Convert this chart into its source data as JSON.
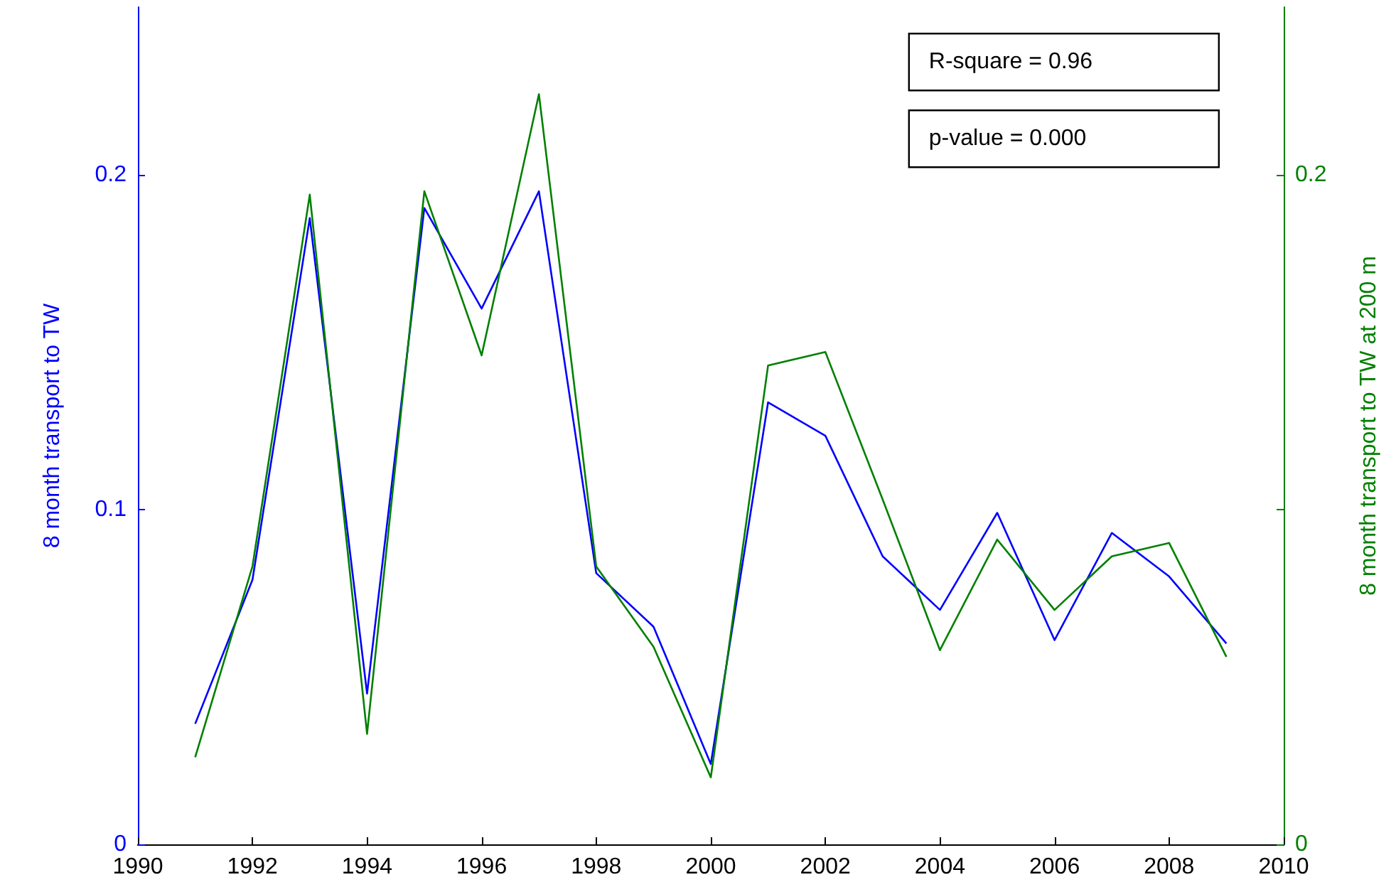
{
  "chart_data": {
    "type": "line",
    "ylabel": "8 month transport to TW",
    "y2label": "8 month transport to TW at 200 m",
    "x": [
      1991,
      1992,
      1993,
      1994,
      1995,
      1996,
      1997,
      1998,
      1999,
      2000,
      2001,
      2002,
      2003,
      2004,
      2005,
      2006,
      2007,
      2008,
      2009
    ],
    "series": [
      {
        "color": "#0000ff",
        "values": [
          0.036,
          0.079,
          0.187,
          0.045,
          0.19,
          0.16,
          0.195,
          0.081,
          0.065,
          0.024,
          0.132,
          0.122,
          0.086,
          0.07,
          0.099,
          0.061,
          0.093,
          0.08,
          0.06
        ]
      },
      {
        "color": "#008000",
        "axis": "y2",
        "values": [
          0.026,
          0.083,
          0.194,
          0.033,
          0.195,
          0.146,
          0.224,
          0.083,
          0.059,
          0.02,
          0.143,
          0.147,
          0.103,
          0.058,
          0.091,
          0.07,
          0.086,
          0.09,
          0.056
        ]
      }
    ],
    "xlim": [
      1990,
      2010
    ],
    "xticks": [
      1990,
      1992,
      1994,
      1996,
      1998,
      2000,
      2002,
      2004,
      2006,
      2008,
      2010
    ],
    "ylim": [
      0,
      0.25
    ],
    "yticks": [
      0,
      0.1,
      0.2
    ],
    "y2lim": [
      0,
      0.25
    ],
    "y2ticks": [
      0,
      {
        "value": 0.1,
        "label": null
      },
      0.2
    ],
    "annotations": [
      "R-square = 0.96",
      "p-value = 0.000"
    ],
    "grid": false,
    "marker": "none",
    "line_style": "solid"
  }
}
